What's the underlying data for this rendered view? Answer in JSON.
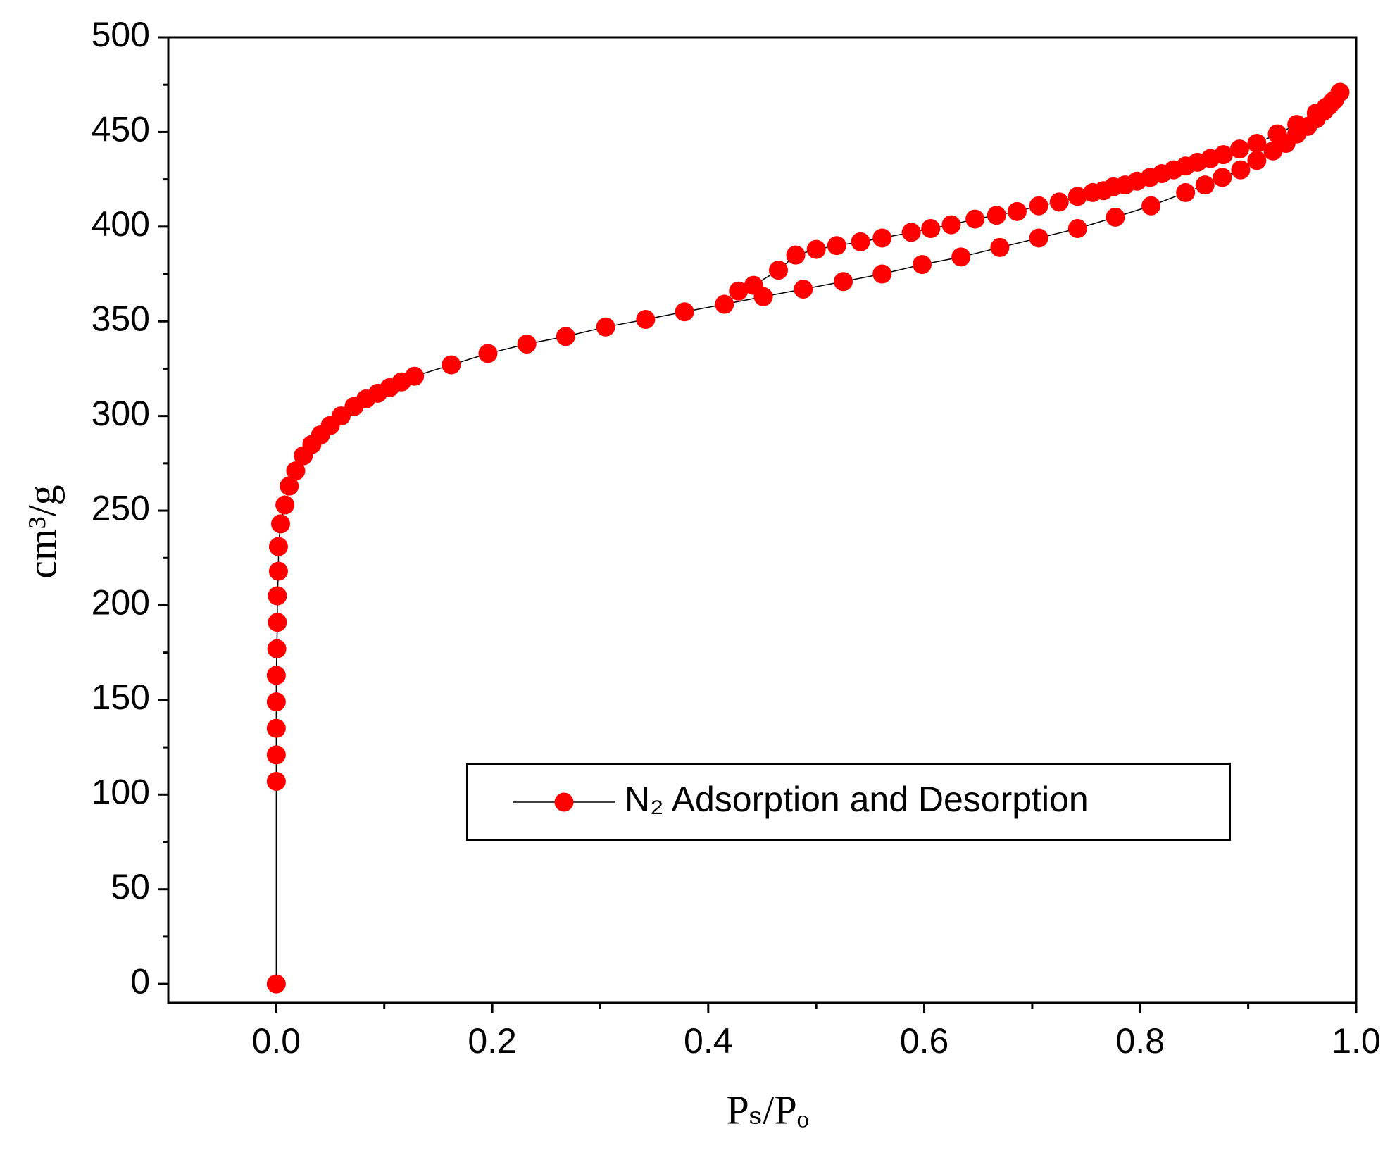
{
  "chart_data": {
    "type": "scatter-line",
    "xlabel": "Pₛ/Pₒ",
    "ylabel": "cm³/g",
    "xlim": [
      -0.1,
      1.0
    ],
    "ylim": [
      -10,
      500
    ],
    "xticks": [
      {
        "value": 0.0,
        "label": "0.0"
      },
      0.2,
      0.4,
      0.6,
      0.8,
      {
        "value": 1.0,
        "label": "1.0"
      }
    ],
    "yticks": [
      0,
      50,
      100,
      150,
      200,
      250,
      300,
      350,
      400,
      450,
      500
    ],
    "legend": "center-right",
    "series": [
      {
        "name": "N₂ Adsorption and Desorption",
        "color": "#ff0000",
        "line_color": "#000000",
        "x": [
          0,
          0,
          0,
          0,
          0,
          0,
          0.0005,
          0.001,
          0.001,
          0.002,
          0.002,
          0.004,
          0.008,
          0.012,
          0.018,
          0.025,
          0.033,
          0.041,
          0.05,
          0.06,
          0.072,
          0.083,
          0.094,
          0.105,
          0.116,
          0.128,
          0.162,
          0.196,
          0.232,
          0.268,
          0.305,
          0.342,
          0.378,
          0.415,
          0.451,
          0.488,
          0.525,
          0.561,
          0.598,
          0.634,
          0.67,
          0.706,
          0.742,
          0.777,
          0.81,
          0.842,
          0.86,
          0.876,
          0.893,
          0.908,
          0.923,
          0.935,
          0.945,
          0.955,
          0.963,
          0.97,
          0.975,
          0.98,
          0.985,
          0.978,
          0.972,
          0.963,
          0.945,
          0.927,
          0.908,
          0.892,
          0.877,
          0.865,
          0.853,
          0.842,
          0.831,
          0.82,
          0.809,
          0.797,
          0.786,
          0.775,
          0.766,
          0.756,
          0.742,
          0.725,
          0.706,
          0.686,
          0.667,
          0.647,
          0.625,
          0.606,
          0.588,
          0.561,
          0.541,
          0.519,
          0.5,
          0.481,
          0.465,
          0.442,
          0.428
        ],
        "values": [
          0,
          107,
          121,
          135,
          149,
          163,
          177,
          191,
          205,
          218,
          231,
          243,
          253,
          263,
          271,
          279,
          285,
          290,
          295,
          300,
          305,
          309,
          312,
          315,
          318,
          321,
          327,
          333,
          338,
          342,
          347,
          351,
          355,
          359,
          363,
          367,
          371,
          375,
          380,
          384,
          389,
          394,
          399,
          405,
          411,
          418,
          422,
          426,
          430,
          435,
          440,
          444,
          449,
          453,
          457,
          461,
          464,
          467,
          471,
          466,
          463,
          460,
          454,
          449,
          444,
          441,
          438,
          436,
          434,
          432,
          430,
          428,
          426,
          424,
          422,
          421,
          419,
          418,
          416,
          413,
          411,
          408,
          406,
          404,
          401,
          399,
          397,
          394,
          392,
          390,
          388,
          385,
          377,
          369,
          366
        ]
      }
    ]
  }
}
